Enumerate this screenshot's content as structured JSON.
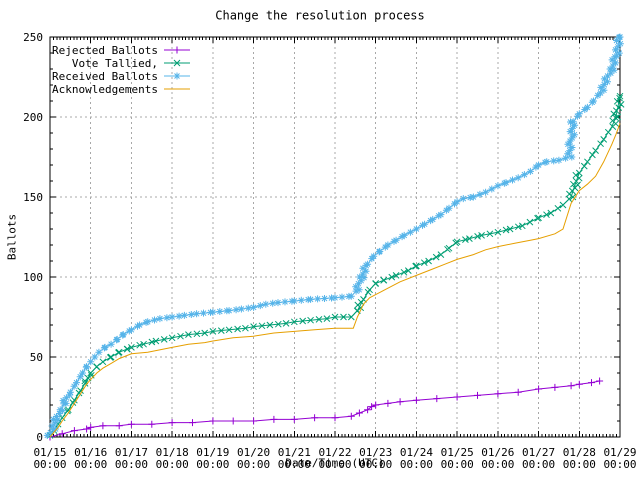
{
  "chart_data": {
    "type": "line",
    "title": "Change the resolution process",
    "xlabel": "Date/Time (UTC)",
    "ylabel": "Ballots",
    "x_unit": "days since 01/15 00:00 UTC",
    "xlim": [
      0,
      14
    ],
    "ylim": [
      0,
      250
    ],
    "y_ticks": [
      0,
      50,
      100,
      150,
      200,
      250
    ],
    "y_minor_step": 10,
    "x_minor_per_day": 12,
    "grid": true,
    "grid_color": "#a8a8a8",
    "legend_position": "top-left-inside",
    "x_ticks": [
      {
        "date": "01/15",
        "time": "00:00"
      },
      {
        "date": "01/16",
        "time": "00:00"
      },
      {
        "date": "01/17",
        "time": "00:00"
      },
      {
        "date": "01/18",
        "time": "00:00"
      },
      {
        "date": "01/19",
        "time": "00:00"
      },
      {
        "date": "01/20",
        "time": "00:00"
      },
      {
        "date": "01/21",
        "time": "00:00"
      },
      {
        "date": "01/22",
        "time": "00:00"
      },
      {
        "date": "01/23",
        "time": "00:00"
      },
      {
        "date": "01/24",
        "time": "00:00"
      },
      {
        "date": "01/25",
        "time": "00:00"
      },
      {
        "date": "01/26",
        "time": "00:00"
      },
      {
        "date": "01/27",
        "time": "00:00"
      },
      {
        "date": "01/28",
        "time": "00:00"
      },
      {
        "date": "01/29",
        "time": "00:00"
      }
    ],
    "series": [
      {
        "name": "Rejected Ballots",
        "color": "#9400d3",
        "marker": "plus",
        "marker_placement": "data",
        "points": [
          [
            0,
            0
          ],
          [
            0.3,
            2
          ],
          [
            0.6,
            4
          ],
          [
            0.9,
            5
          ],
          [
            1.0,
            6
          ],
          [
            1.3,
            7
          ],
          [
            1.7,
            7
          ],
          [
            2.0,
            8
          ],
          [
            2.5,
            8
          ],
          [
            3.0,
            9
          ],
          [
            3.5,
            9
          ],
          [
            4.0,
            10
          ],
          [
            4.5,
            10
          ],
          [
            5.0,
            10
          ],
          [
            5.5,
            11
          ],
          [
            6.0,
            11
          ],
          [
            6.5,
            12
          ],
          [
            7.0,
            12
          ],
          [
            7.4,
            13
          ],
          [
            7.6,
            15
          ],
          [
            7.8,
            17
          ],
          [
            7.9,
            19
          ],
          [
            8.0,
            20
          ],
          [
            8.3,
            21
          ],
          [
            8.6,
            22
          ],
          [
            9.0,
            23
          ],
          [
            9.5,
            24
          ],
          [
            10.0,
            25
          ],
          [
            10.5,
            26
          ],
          [
            11.0,
            27
          ],
          [
            11.5,
            28
          ],
          [
            12.0,
            30
          ],
          [
            12.4,
            31
          ],
          [
            12.8,
            32
          ],
          [
            13.0,
            33
          ],
          [
            13.3,
            34
          ],
          [
            13.5,
            35
          ]
        ]
      },
      {
        "name": "Vote Tallied,",
        "color": "#009e73",
        "marker": "cross",
        "marker_placement": "path",
        "marker_spacing_px": 8.5,
        "points": [
          [
            0,
            1
          ],
          [
            0.1,
            4
          ],
          [
            0.2,
            8
          ],
          [
            0.3,
            12
          ],
          [
            0.45,
            17
          ],
          [
            0.6,
            23
          ],
          [
            0.75,
            29
          ],
          [
            0.9,
            35
          ],
          [
            1.0,
            40
          ],
          [
            1.15,
            44
          ],
          [
            1.3,
            47
          ],
          [
            1.5,
            50
          ],
          [
            1.7,
            53
          ],
          [
            1.9,
            55
          ],
          [
            2.0,
            56
          ],
          [
            2.3,
            58
          ],
          [
            2.6,
            60
          ],
          [
            3.0,
            62
          ],
          [
            3.4,
            64
          ],
          [
            3.8,
            65
          ],
          [
            4.0,
            66
          ],
          [
            4.4,
            67
          ],
          [
            4.8,
            68
          ],
          [
            5.0,
            69
          ],
          [
            5.4,
            70
          ],
          [
            5.8,
            71
          ],
          [
            6.0,
            72
          ],
          [
            6.4,
            73
          ],
          [
            6.8,
            74
          ],
          [
            7.0,
            75
          ],
          [
            7.4,
            75
          ],
          [
            7.55,
            79
          ],
          [
            7.7,
            86
          ],
          [
            7.85,
            92
          ],
          [
            8.0,
            96
          ],
          [
            8.2,
            98
          ],
          [
            8.5,
            101
          ],
          [
            8.8,
            104
          ],
          [
            9.0,
            107
          ],
          [
            9.3,
            110
          ],
          [
            9.6,
            114
          ],
          [
            9.8,
            118
          ],
          [
            10.0,
            122
          ],
          [
            10.3,
            124
          ],
          [
            10.6,
            126
          ],
          [
            11.0,
            128
          ],
          [
            11.3,
            130
          ],
          [
            11.6,
            132
          ],
          [
            12.0,
            137
          ],
          [
            12.3,
            140
          ],
          [
            12.6,
            145
          ],
          [
            12.8,
            150
          ],
          [
            12.9,
            158
          ],
          [
            13.0,
            165
          ],
          [
            13.2,
            172
          ],
          [
            13.4,
            179
          ],
          [
            13.6,
            186
          ],
          [
            13.8,
            194
          ],
          [
            13.9,
            200
          ],
          [
            14.0,
            213
          ]
        ]
      },
      {
        "name": "Received Ballots",
        "color": "#56b4e9",
        "marker": "asterisk",
        "marker_placement": "path",
        "marker_spacing_px": 7,
        "points": [
          [
            0,
            1
          ],
          [
            0.07,
            5
          ],
          [
            0.15,
            11
          ],
          [
            0.25,
            17
          ],
          [
            0.35,
            21
          ],
          [
            0.5,
            28
          ],
          [
            0.65,
            34
          ],
          [
            0.8,
            40
          ],
          [
            0.9,
            44
          ],
          [
            1.0,
            47
          ],
          [
            1.1,
            50
          ],
          [
            1.2,
            53
          ],
          [
            1.35,
            56
          ],
          [
            1.5,
            58
          ],
          [
            1.65,
            61
          ],
          [
            1.8,
            64
          ],
          [
            2.0,
            67
          ],
          [
            2.2,
            70
          ],
          [
            2.4,
            72
          ],
          [
            2.7,
            74
          ],
          [
            3.0,
            75
          ],
          [
            3.3,
            76
          ],
          [
            3.6,
            77
          ],
          [
            4.0,
            78
          ],
          [
            4.4,
            79
          ],
          [
            4.7,
            80
          ],
          [
            5.0,
            81
          ],
          [
            5.3,
            83
          ],
          [
            5.6,
            84
          ],
          [
            6.0,
            85
          ],
          [
            6.4,
            86
          ],
          [
            7.0,
            87
          ],
          [
            7.4,
            88
          ],
          [
            7.55,
            92
          ],
          [
            7.65,
            100
          ],
          [
            7.8,
            108
          ],
          [
            7.95,
            113
          ],
          [
            8.1,
            116
          ],
          [
            8.3,
            120
          ],
          [
            8.5,
            123
          ],
          [
            8.7,
            126
          ],
          [
            9.0,
            130
          ],
          [
            9.2,
            133
          ],
          [
            9.4,
            136
          ],
          [
            9.6,
            139
          ],
          [
            9.8,
            143
          ],
          [
            10.0,
            147
          ],
          [
            10.15,
            149
          ],
          [
            10.4,
            150
          ],
          [
            10.7,
            153
          ],
          [
            11.0,
            157
          ],
          [
            11.2,
            159
          ],
          [
            11.5,
            162
          ],
          [
            11.8,
            166
          ],
          [
            12.0,
            170
          ],
          [
            12.2,
            172
          ],
          [
            12.5,
            173
          ],
          [
            12.75,
            175
          ],
          [
            12.85,
            197
          ],
          [
            13.0,
            202
          ],
          [
            13.2,
            206
          ],
          [
            13.35,
            210
          ],
          [
            13.5,
            215
          ],
          [
            13.65,
            222
          ],
          [
            13.8,
            230
          ],
          [
            13.9,
            238
          ],
          [
            14.0,
            250
          ]
        ]
      },
      {
        "name": "Acknowledgements",
        "color": "#e69f00",
        "marker": "none",
        "marker_placement": "none",
        "points": [
          [
            0,
            0
          ],
          [
            0.1,
            3
          ],
          [
            0.2,
            6
          ],
          [
            0.3,
            10
          ],
          [
            0.45,
            15
          ],
          [
            0.6,
            21
          ],
          [
            0.75,
            27
          ],
          [
            0.9,
            33
          ],
          [
            1.0,
            36
          ],
          [
            1.15,
            40
          ],
          [
            1.3,
            43
          ],
          [
            1.5,
            46
          ],
          [
            1.7,
            49
          ],
          [
            1.9,
            51
          ],
          [
            2.0,
            52
          ],
          [
            2.4,
            53
          ],
          [
            2.8,
            55
          ],
          [
            3.0,
            56
          ],
          [
            3.4,
            58
          ],
          [
            3.8,
            59
          ],
          [
            4.0,
            60
          ],
          [
            4.5,
            62
          ],
          [
            5.0,
            63
          ],
          [
            5.5,
            65
          ],
          [
            6.0,
            66
          ],
          [
            6.5,
            67
          ],
          [
            7.0,
            68
          ],
          [
            7.45,
            68
          ],
          [
            7.55,
            75
          ],
          [
            7.7,
            83
          ],
          [
            7.85,
            87
          ],
          [
            8.0,
            89
          ],
          [
            8.3,
            93
          ],
          [
            8.6,
            97
          ],
          [
            9.0,
            101
          ],
          [
            9.4,
            105
          ],
          [
            9.7,
            108
          ],
          [
            10.0,
            111
          ],
          [
            10.4,
            114
          ],
          [
            10.7,
            117
          ],
          [
            11.0,
            119
          ],
          [
            11.4,
            121
          ],
          [
            11.8,
            123
          ],
          [
            12.0,
            124
          ],
          [
            12.4,
            127
          ],
          [
            12.6,
            130
          ],
          [
            12.8,
            146
          ],
          [
            13.0,
            154
          ],
          [
            13.2,
            158
          ],
          [
            13.4,
            163
          ],
          [
            13.6,
            172
          ],
          [
            13.8,
            183
          ],
          [
            13.9,
            189
          ],
          [
            14.0,
            196
          ]
        ]
      }
    ]
  }
}
